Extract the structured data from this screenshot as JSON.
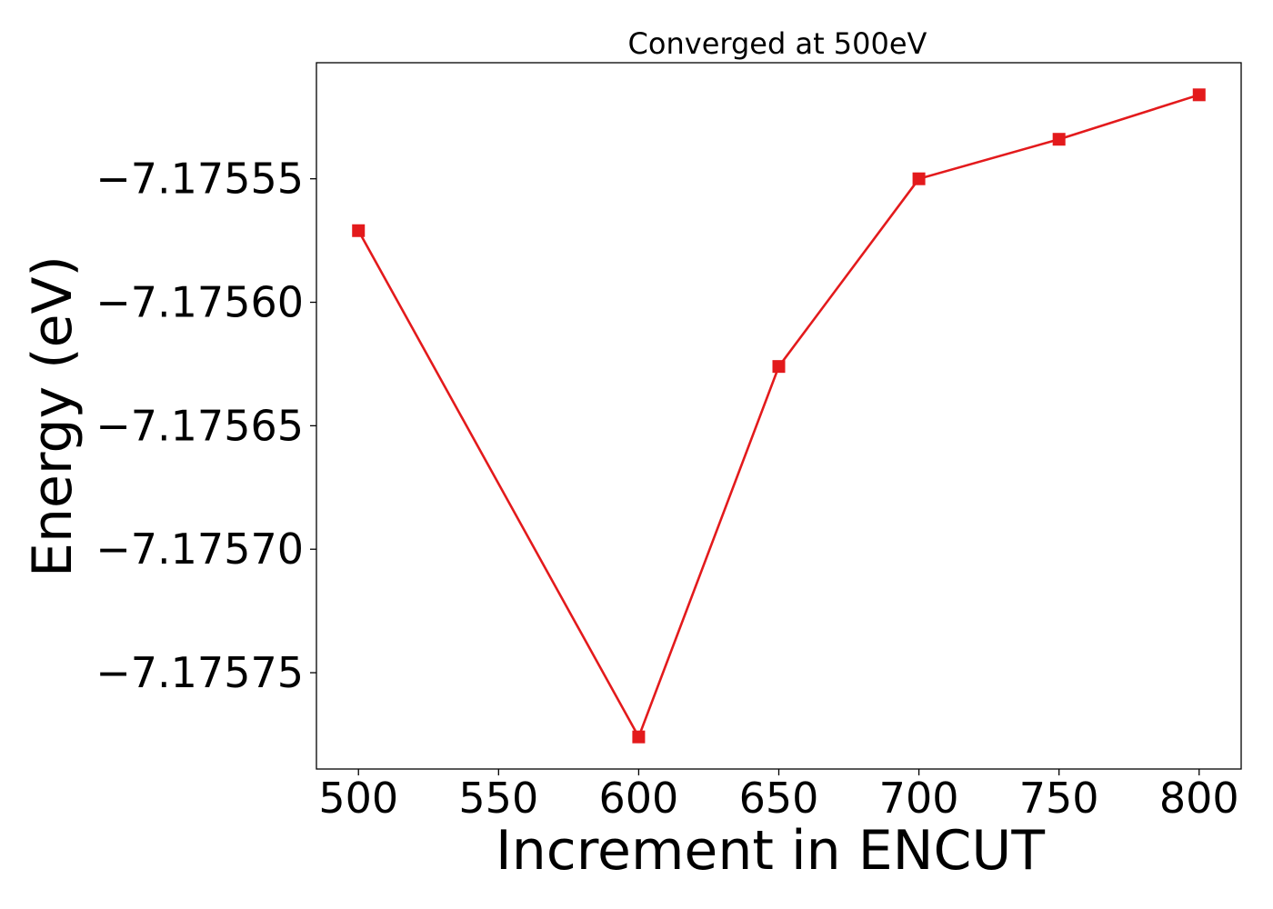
{
  "chart_data": {
    "type": "line",
    "title": "Converged at 500eV",
    "xlabel": "Increment in ENCUT",
    "ylabel": "Energy (eV)",
    "x": [
      500,
      600,
      650,
      700,
      750,
      800
    ],
    "series": [
      {
        "values": [
          -7.175571,
          -7.175776,
          -7.175626,
          -7.17555,
          -7.175534,
          -7.175516
        ],
        "color": "#e31a1c",
        "marker": "square"
      }
    ],
    "x_ticks": [
      500,
      550,
      600,
      650,
      700,
      750,
      800
    ],
    "x_tick_labels": [
      "500",
      "550",
      "600",
      "650",
      "700",
      "750",
      "800"
    ],
    "y_ticks": [
      -7.17555,
      -7.1756,
      -7.17565,
      -7.1757,
      -7.17575
    ],
    "y_tick_labels": [
      "−7.17555",
      "−7.17560",
      "−7.17565",
      "−7.17570",
      "−7.17575"
    ],
    "xlim": [
      485,
      815
    ],
    "ylim": [
      -7.175789,
      -7.175503
    ],
    "grid": false,
    "legend": "none"
  }
}
